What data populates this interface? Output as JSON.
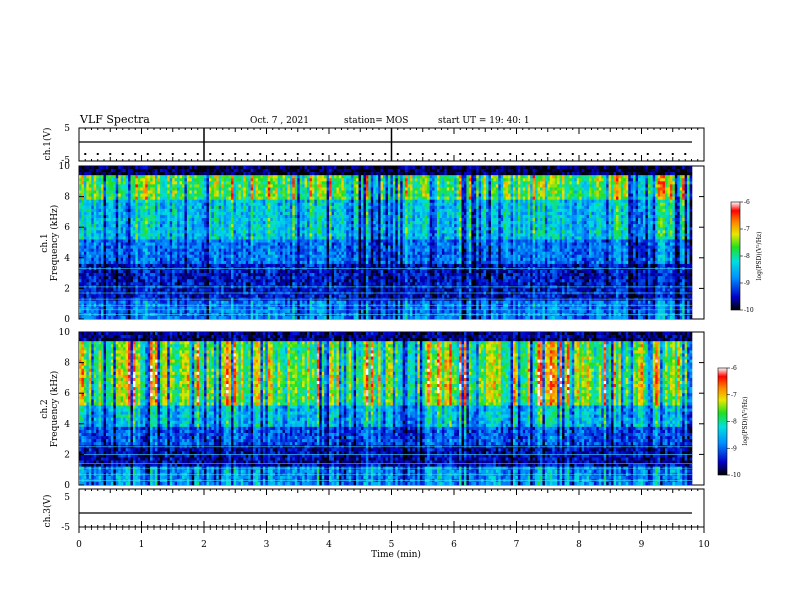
{
  "header": {
    "title": "VLF Spectra",
    "date": "Oct. 7 , 2021",
    "station": "station= MOS",
    "start": "start  UT =   19: 40: 1"
  },
  "chart_data": [
    {
      "type": "line",
      "name": "ch1-waveform",
      "ylabel": "ch.1(V)",
      "ylim": [
        -5,
        5
      ],
      "yticks": [
        "5",
        "-5"
      ],
      "xlim": [
        0,
        10
      ]
    },
    {
      "type": "heatmap",
      "name": "ch1-spectrogram",
      "ylabel": "Frequency (kHz)",
      "ylabel_prefix": "ch.1",
      "ylim": [
        0,
        10
      ],
      "yticks": [
        "0",
        "2",
        "4",
        "6",
        "8",
        "10"
      ],
      "xlim": [
        0,
        10
      ],
      "colorbar": {
        "label": "log(PSD)(V²/Hz)",
        "ticks": [
          "-6",
          "-7",
          "-8",
          "-9",
          "-10"
        ],
        "range": [
          -10,
          -6
        ]
      }
    },
    {
      "type": "heatmap",
      "name": "ch2-spectrogram",
      "ylabel": "Frequency (kHz)",
      "ylabel_prefix": "ch.2",
      "ylim": [
        0,
        10
      ],
      "yticks": [
        "0",
        "2",
        "4",
        "6",
        "8",
        "10"
      ],
      "xlim": [
        0,
        10
      ],
      "colorbar": {
        "label": "log(PSD)(V²/Hz)",
        "ticks": [
          "-6",
          "-7",
          "-8",
          "-9",
          "-10"
        ],
        "range": [
          -10,
          -6
        ]
      }
    },
    {
      "type": "line",
      "name": "ch3-waveform",
      "ylabel": "ch.3(V)",
      "ylim": [
        -5,
        5
      ],
      "yticks": [
        "5",
        "-5"
      ],
      "xlim": [
        0,
        10
      ],
      "xlabel": "Time  (min)",
      "xticks": [
        "0",
        "1",
        "2",
        "3",
        "4",
        "5",
        "6",
        "7",
        "8",
        "9",
        "10"
      ]
    }
  ]
}
